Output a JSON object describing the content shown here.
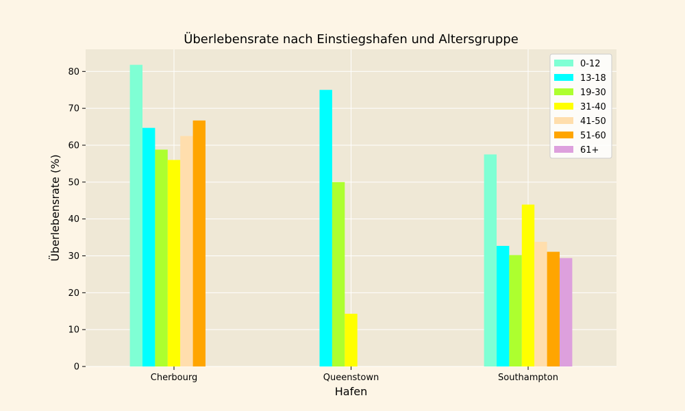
{
  "chart_data": {
    "type": "bar",
    "title": "Überlebensrate nach Einstiegshafen und Altersgruppe",
    "xlabel": "Hafen",
    "ylabel": "Überlebensrate (%)",
    "categories": [
      "Cherbourg",
      "Queenstown",
      "Southampton"
    ],
    "ylim": [
      0,
      86
    ],
    "yticks": [
      0,
      10,
      20,
      30,
      40,
      50,
      60,
      70,
      80
    ],
    "grid": true,
    "legend_position": "top-right",
    "series": [
      {
        "name": "0-12",
        "color": "#7fffd4",
        "values": [
          81.8,
          null,
          57.5
        ]
      },
      {
        "name": "13-18",
        "color": "#00ffff",
        "values": [
          64.7,
          75.0,
          32.7
        ]
      },
      {
        "name": "19-30",
        "color": "#adff2f",
        "values": [
          58.8,
          50.0,
          30.2
        ]
      },
      {
        "name": "31-40",
        "color": "#ffff00",
        "values": [
          56.0,
          14.3,
          43.9
        ]
      },
      {
        "name": "41-50",
        "color": "#ffdead",
        "values": [
          62.5,
          null,
          33.8
        ]
      },
      {
        "name": "51-60",
        "color": "#ffa500",
        "values": [
          66.7,
          null,
          31.1
        ]
      },
      {
        "name": "61+",
        "color": "#dda0dd",
        "values": [
          null,
          null,
          29.4
        ]
      }
    ],
    "colors": {
      "plot_background": "#efe8d6",
      "page_background": "#fdf5e6",
      "grid": "#ffffff"
    }
  }
}
